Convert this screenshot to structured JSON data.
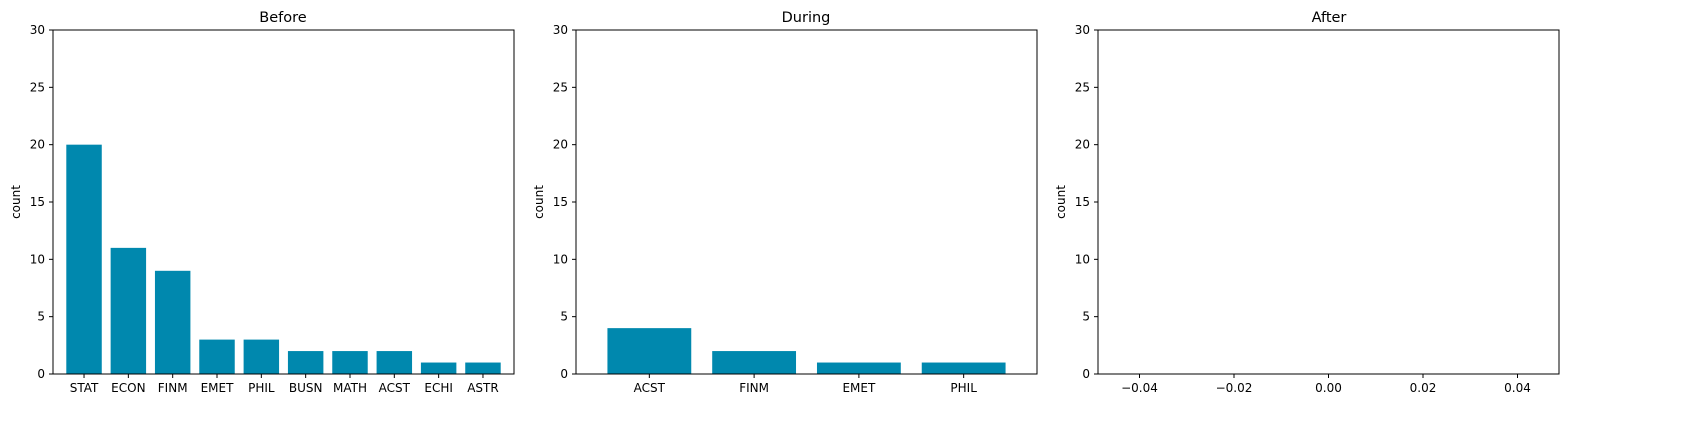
{
  "bar_color": "#0088AE",
  "chart_data": [
    {
      "type": "bar",
      "title": "Before",
      "xlabel": "",
      "ylabel": "count",
      "ylim": [
        0,
        30
      ],
      "yticks": [
        "0",
        "5",
        "10",
        "15",
        "20",
        "25",
        "30"
      ],
      "categories": [
        "STAT",
        "ECON",
        "FINM",
        "EMET",
        "PHIL",
        "BUSN",
        "MATH",
        "ACST",
        "ECHI",
        "ASTR"
      ],
      "values": [
        20,
        11,
        9,
        3,
        3,
        2,
        2,
        2,
        1,
        1
      ]
    },
    {
      "type": "bar",
      "title": "During",
      "xlabel": "",
      "ylabel": "count",
      "ylim": [
        0,
        30
      ],
      "yticks": [
        "0",
        "5",
        "10",
        "15",
        "20",
        "25",
        "30"
      ],
      "categories": [
        "ACST",
        "FINM",
        "EMET",
        "PHIL"
      ],
      "values": [
        4,
        2,
        1,
        1
      ]
    },
    {
      "type": "bar",
      "title": "After",
      "xlabel": "",
      "ylabel": "count",
      "ylim": [
        0,
        30
      ],
      "yticks": [
        "0",
        "5",
        "10",
        "15",
        "20",
        "25",
        "30"
      ],
      "categories": [],
      "values": [],
      "xticks": [
        "−0.04",
        "−0.02",
        "0.00",
        "0.02",
        "0.04"
      ]
    }
  ]
}
